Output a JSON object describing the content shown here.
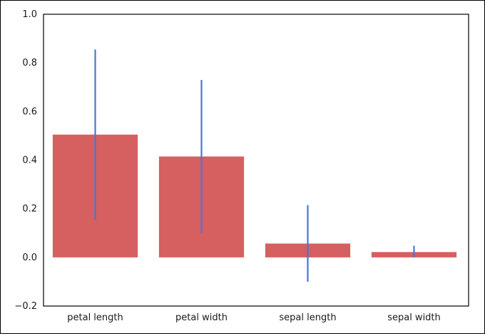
{
  "chart_data": {
    "type": "bar",
    "categories": [
      "petal length",
      "petal width",
      "sepal length",
      "sepal width"
    ],
    "values": [
      0.505,
      0.415,
      0.057,
      0.022
    ],
    "error_low": [
      0.155,
      0.1,
      -0.1,
      0.0
    ],
    "error_high": [
      0.855,
      0.73,
      0.215,
      0.048
    ],
    "ylim": [
      -0.2,
      1.0
    ],
    "yticks": [
      "−0.2",
      "0.0",
      "0.2",
      "0.4",
      "0.6",
      "0.8",
      "1.0"
    ],
    "ytick_values": [
      -0.2,
      0.0,
      0.2,
      0.4,
      0.6,
      0.8,
      1.0
    ],
    "grid": false,
    "colors": {
      "bar": "#d65f5f",
      "error": "#4878cf",
      "axis": "#000000"
    }
  }
}
